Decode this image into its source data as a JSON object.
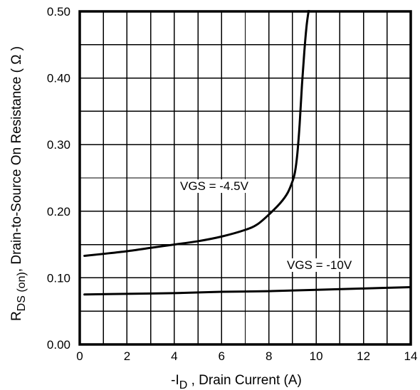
{
  "chart_data": {
    "type": "line",
    "title": "",
    "xlabel": {
      "prefix": "-I",
      "subscript": "D",
      "suffix": " , Drain Current (A)"
    },
    "ylabel": {
      "prefix": "R",
      "subscript": "DS (on)",
      "suffix": ", Drain-to-Source On Resistance ( Ω )"
    },
    "xlim": [
      0,
      14
    ],
    "ylim": [
      0,
      0.5
    ],
    "x_ticks": [
      "0",
      "2",
      "4",
      "6",
      "8",
      "10",
      "12",
      "14"
    ],
    "y_ticks": [
      "0.00",
      "0.10",
      "0.20",
      "0.30",
      "0.40",
      "0.50"
    ],
    "grid": true,
    "grid_x_step": 1,
    "grid_y_step": 0.05,
    "series": [
      {
        "name": "VGS = -4.5V",
        "x": [
          0.2,
          1,
          2,
          3,
          4,
          5,
          6,
          7,
          7.5,
          8,
          8.5,
          8.8,
          9,
          9.1,
          9.2,
          9.3,
          9.4,
          9.5,
          9.6,
          9.7
        ],
        "y": [
          0.133,
          0.136,
          0.14,
          0.145,
          0.15,
          0.155,
          0.162,
          0.172,
          0.18,
          0.195,
          0.213,
          0.228,
          0.245,
          0.258,
          0.285,
          0.33,
          0.39,
          0.44,
          0.48,
          0.505
        ]
      },
      {
        "name": "VGS = -10V",
        "x": [
          0.2,
          2,
          4,
          6,
          8,
          10,
          12,
          14
        ],
        "y": [
          0.075,
          0.076,
          0.077,
          0.079,
          0.08,
          0.082,
          0.084,
          0.086
        ]
      }
    ]
  }
}
